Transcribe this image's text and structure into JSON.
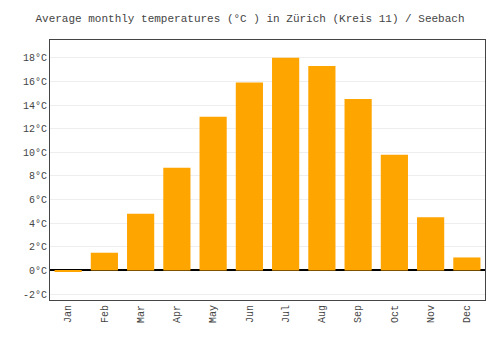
{
  "chart_data": {
    "type": "bar",
    "title": "Average monthly temperatures (°C ) in Zürich (Kreis 11) / Seebach",
    "categories": [
      "Jan",
      "Feb",
      "Mar",
      "Apr",
      "May",
      "Jun",
      "Jul",
      "Aug",
      "Sep",
      "Oct",
      "Nov",
      "Dec"
    ],
    "values": [
      -0.1,
      1.5,
      4.8,
      8.7,
      13.0,
      15.9,
      18.0,
      17.3,
      14.5,
      9.8,
      4.5,
      1.1
    ],
    "color": "#FFA500",
    "ylim": [
      -2.5,
      19.5
    ],
    "yticks": [
      {
        "value": -2,
        "label": "-2°C"
      },
      {
        "value": 0,
        "label": "0°C"
      },
      {
        "value": 2,
        "label": "2°C"
      },
      {
        "value": 4,
        "label": "4°C"
      },
      {
        "value": 6,
        "label": "6°C"
      },
      {
        "value": 8,
        "label": "8°C"
      },
      {
        "value": 10,
        "label": "10°C"
      },
      {
        "value": 12,
        "label": "12°C"
      },
      {
        "value": 14,
        "label": "14°C"
      },
      {
        "value": 16,
        "label": "16°C"
      },
      {
        "value": 18,
        "label": "18°C"
      }
    ],
    "grid": true
  }
}
